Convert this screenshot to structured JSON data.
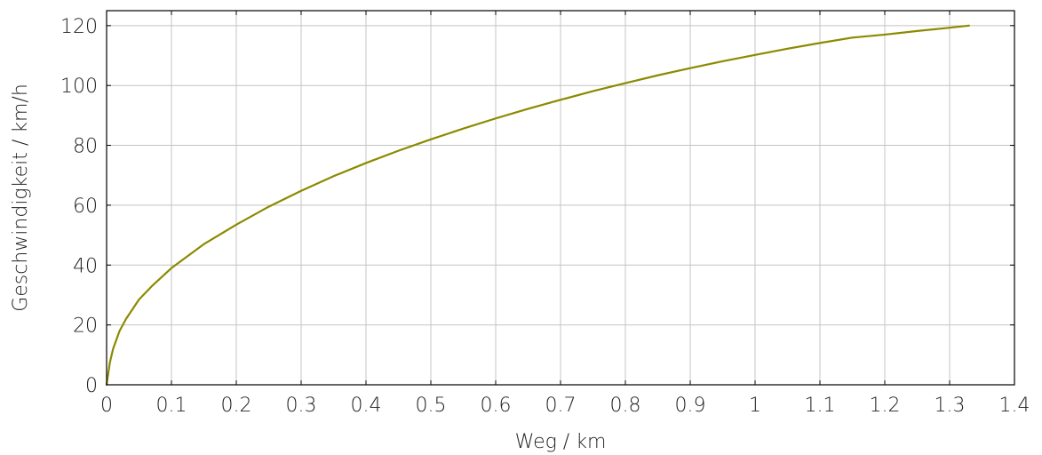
{
  "chart_data": {
    "type": "line",
    "title": "",
    "xlabel": "Weg / km",
    "ylabel": "Geschwindigkeit / km/h",
    "xlim": [
      0,
      1.4
    ],
    "ylim": [
      0,
      125
    ],
    "xticks": [
      "0",
      "0.1",
      "0.2",
      "0.3",
      "0.4",
      "0.5",
      "0.6",
      "0.7",
      "0.8",
      "0.9",
      "1",
      "1.1",
      "1.2",
      "1.3",
      "1.4"
    ],
    "yticks": [
      "0",
      "20",
      "40",
      "60",
      "80",
      "100",
      "120"
    ],
    "grid": true,
    "legend": "none",
    "series": [
      {
        "color": "#8c8a00",
        "x": [
          0,
          0.005,
          0.01,
          0.02,
          0.03,
          0.05,
          0.07,
          0.1,
          0.15,
          0.2,
          0.25,
          0.3,
          0.35,
          0.4,
          0.45,
          0.5,
          0.55,
          0.6,
          0.65,
          0.7,
          0.75,
          0.8,
          0.85,
          0.9,
          0.95,
          1.0,
          1.05,
          1.1,
          1.15,
          1.2,
          1.25,
          1.3,
          1.33
        ],
        "y": [
          0,
          7.4,
          12.0,
          18.0,
          22.0,
          28.5,
          33.0,
          39.0,
          47.0,
          53.5,
          59.5,
          64.8,
          69.7,
          74.1,
          78.2,
          82.0,
          85.6,
          89.0,
          92.2,
          95.2,
          98.1,
          100.8,
          103.4,
          105.8,
          108.1,
          110.2,
          112.3,
          114.2,
          116.0,
          117.0,
          118.2,
          119.3,
          120.0
        ]
      }
    ]
  }
}
